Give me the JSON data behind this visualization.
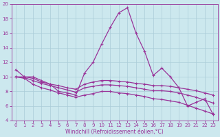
{
  "xlabel": "Windchill (Refroidissement éolien,°C)",
  "bg_color": "#cce8ee",
  "grid_color": "#aaccd8",
  "line_color": "#993399",
  "xlim": [
    -0.5,
    23.5
  ],
  "ylim": [
    4,
    20
  ],
  "yticks": [
    4,
    6,
    8,
    10,
    12,
    14,
    16,
    18,
    20
  ],
  "xticks": [
    0,
    1,
    2,
    3,
    4,
    5,
    6,
    7,
    8,
    9,
    10,
    11,
    12,
    13,
    14,
    15,
    16,
    17,
    18,
    19,
    20,
    21,
    22,
    23
  ],
  "line1_y": [
    11,
    10,
    10,
    9.5,
    9.0,
    8.0,
    7.8,
    7.5,
    10.5,
    12.0,
    14.5,
    16.8,
    18.8,
    19.5,
    16.0,
    13.5,
    10.2,
    11.2,
    10.0,
    8.5,
    6.0,
    6.5,
    7.0,
    4.8
  ],
  "line2_y": [
    10,
    10,
    9.8,
    9.3,
    9.0,
    8.8,
    8.5,
    8.3,
    9.0,
    9.3,
    9.5,
    9.5,
    9.4,
    9.3,
    9.1,
    9.0,
    8.8,
    8.8,
    8.7,
    8.5,
    8.3,
    8.1,
    7.8,
    7.5
  ],
  "line3_y": [
    10,
    9.9,
    9.5,
    9.1,
    8.8,
    8.5,
    8.2,
    7.9,
    8.5,
    8.7,
    8.9,
    8.9,
    8.8,
    8.7,
    8.5,
    8.3,
    8.1,
    8.1,
    8.0,
    7.8,
    7.5,
    7.2,
    6.8,
    6.4
  ],
  "line4_y": [
    10,
    9.8,
    9.0,
    8.5,
    8.2,
    7.8,
    7.5,
    7.2,
    7.5,
    7.7,
    8.0,
    8.0,
    7.8,
    7.7,
    7.5,
    7.3,
    7.0,
    6.9,
    6.7,
    6.5,
    6.1,
    5.7,
    5.3,
    4.9
  ],
  "marker_size": 3,
  "line_width": 0.9,
  "tick_fontsize": 5,
  "xlabel_fontsize": 5.5
}
